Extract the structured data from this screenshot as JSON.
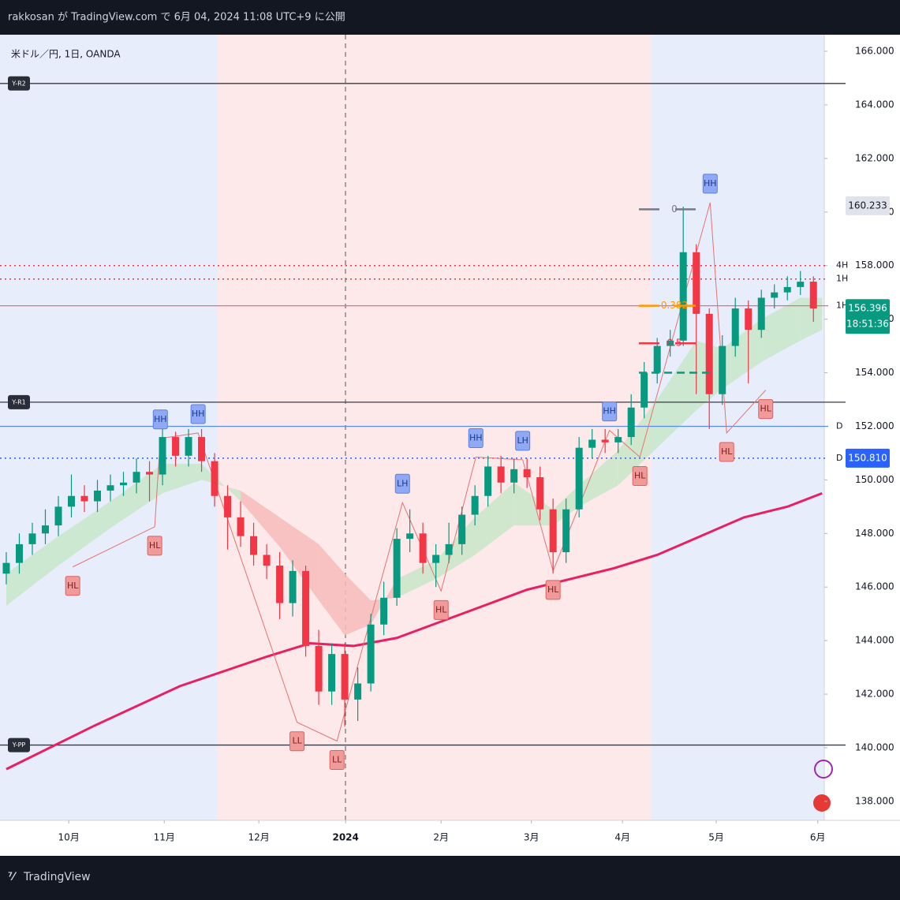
{
  "header": {
    "publisher": "rakkosan が TradingView.com で 6月 04, 2024 11:08 UTC+9 に公開"
  },
  "chart_data": {
    "type": "candlestick",
    "title": "米ドル／円, 1日, OANDA",
    "xlim": [
      -1.45,
      188.5
    ],
    "xticks": [
      {
        "value": 14.4,
        "label": "10月"
      },
      {
        "value": 36.4,
        "label": "11月"
      },
      {
        "value": 58.2,
        "label": "12月"
      },
      {
        "value": 78.2,
        "label": "2024"
      },
      {
        "value": 100.2,
        "label": "2月"
      },
      {
        "value": 121,
        "label": "3月"
      },
      {
        "value": 142,
        "label": "4月"
      },
      {
        "value": 163.6,
        "label": "5月"
      },
      {
        "value": 187,
        "label": "6月"
      }
    ],
    "ylim": [
      137.29,
      166.62
    ],
    "yticks": [
      {
        "value": 138,
        "label": "138.000"
      },
      {
        "value": 140,
        "label": "140.000"
      },
      {
        "value": 142,
        "label": "142.000"
      },
      {
        "value": 144,
        "label": "144.000"
      },
      {
        "value": 146,
        "label": "146.000"
      },
      {
        "value": 148,
        "label": "148.000"
      },
      {
        "value": 150,
        "label": "150.000"
      },
      {
        "value": 152,
        "label": "152.000"
      },
      {
        "value": 154,
        "label": "154.000"
      },
      {
        "value": 156,
        "label": "156.000"
      },
      {
        "value": 158,
        "label": "158.000"
      },
      {
        "value": 160,
        "label": "160.000"
      },
      {
        "value": 162,
        "label": "162.000"
      },
      {
        "value": 164,
        "label": "164.000"
      },
      {
        "value": 166,
        "label": "166.000"
      }
    ],
    "candles": {
      "up_color": "#089981",
      "down_color": "#f23645",
      "x": [
        0,
        3,
        6,
        9,
        12,
        15,
        18,
        21,
        24,
        27,
        30,
        33,
        36,
        39,
        42,
        45,
        48,
        51,
        54,
        57,
        60,
        63,
        66,
        69,
        72,
        75,
        78,
        81,
        84,
        87,
        90,
        93,
        96,
        99,
        102,
        105,
        108,
        111,
        114,
        117,
        120,
        123,
        126,
        129,
        132,
        135,
        138,
        141,
        144,
        147,
        150,
        153,
        156,
        159,
        162,
        165,
        168,
        171,
        174,
        177,
        180,
        183,
        186
      ],
      "ohlc": [
        [
          146.5,
          147.3,
          146.1,
          146.9
        ],
        [
          146.9,
          148.0,
          146.5,
          147.6
        ],
        [
          147.6,
          148.4,
          147.2,
          148.0
        ],
        [
          148.0,
          148.9,
          147.6,
          148.3
        ],
        [
          148.3,
          149.4,
          147.9,
          149.0
        ],
        [
          149.0,
          150.2,
          148.6,
          149.4
        ],
        [
          149.4,
          149.8,
          148.8,
          149.2
        ],
        [
          149.2,
          150.0,
          148.8,
          149.6
        ],
        [
          149.6,
          150.2,
          149.2,
          149.8
        ],
        [
          149.8,
          150.3,
          149.4,
          149.9
        ],
        [
          149.9,
          150.8,
          149.5,
          150.3
        ],
        [
          150.3,
          150.7,
          149.2,
          150.2
        ],
        [
          150.2,
          151.9,
          149.8,
          151.6
        ],
        [
          151.6,
          151.8,
          150.5,
          150.9
        ],
        [
          150.9,
          151.9,
          150.5,
          151.6
        ],
        [
          151.6,
          151.9,
          150.3,
          150.7
        ],
        [
          150.7,
          151.0,
          149.0,
          149.4
        ],
        [
          149.4,
          149.8,
          147.4,
          148.6
        ],
        [
          148.6,
          149.2,
          147.5,
          147.9
        ],
        [
          147.9,
          148.4,
          146.8,
          147.2
        ],
        [
          147.2,
          147.6,
          146.3,
          146.8
        ],
        [
          146.8,
          147.3,
          144.8,
          145.4
        ],
        [
          145.4,
          147.0,
          144.9,
          146.6
        ],
        [
          146.6,
          146.8,
          143.4,
          143.8
        ],
        [
          143.8,
          144.4,
          141.6,
          142.1
        ],
        [
          142.1,
          143.9,
          141.6,
          143.5
        ],
        [
          143.5,
          143.9,
          140.8,
          141.8
        ],
        [
          141.8,
          143.0,
          141.0,
          142.4
        ],
        [
          142.4,
          145.0,
          142.1,
          144.6
        ],
        [
          144.6,
          146.2,
          144.2,
          145.6
        ],
        [
          145.6,
          148.2,
          145.3,
          147.8
        ],
        [
          147.8,
          148.9,
          147.3,
          148.0
        ],
        [
          148.0,
          148.4,
          146.5,
          146.9
        ],
        [
          146.9,
          147.6,
          146.0,
          147.2
        ],
        [
          147.2,
          148.4,
          146.9,
          147.6
        ],
        [
          147.6,
          149.0,
          147.2,
          148.7
        ],
        [
          148.7,
          149.8,
          148.3,
          149.4
        ],
        [
          149.4,
          150.9,
          149.0,
          150.5
        ],
        [
          150.5,
          150.9,
          149.5,
          149.9
        ],
        [
          149.9,
          150.8,
          149.5,
          150.4
        ],
        [
          150.4,
          150.8,
          149.7,
          150.1
        ],
        [
          150.1,
          150.5,
          148.5,
          148.9
        ],
        [
          148.9,
          149.3,
          146.5,
          147.3
        ],
        [
          147.3,
          149.3,
          146.9,
          148.9
        ],
        [
          148.9,
          151.6,
          148.6,
          151.2
        ],
        [
          151.2,
          151.9,
          150.8,
          151.5
        ],
        [
          151.5,
          151.9,
          151.0,
          151.4
        ],
        [
          151.4,
          151.9,
          151.0,
          151.6
        ],
        [
          151.6,
          153.2,
          151.3,
          152.7
        ],
        [
          152.7,
          154.4,
          152.3,
          154.0
        ],
        [
          154.0,
          155.3,
          153.6,
          155.0
        ],
        [
          155.0,
          155.6,
          154.6,
          155.2
        ],
        [
          155.2,
          160.2,
          155.0,
          158.5
        ],
        [
          158.5,
          158.8,
          153.2,
          156.2
        ],
        [
          156.2,
          156.4,
          151.9,
          153.2
        ],
        [
          153.2,
          155.4,
          152.8,
          155.0
        ],
        [
          155.0,
          156.8,
          154.6,
          156.4
        ],
        [
          156.4,
          156.7,
          153.6,
          155.6
        ],
        [
          155.6,
          157.1,
          155.3,
          156.8
        ],
        [
          156.8,
          157.3,
          156.4,
          157.0
        ],
        [
          157.0,
          157.6,
          156.7,
          157.2
        ],
        [
          157.2,
          157.8,
          156.9,
          157.4
        ],
        [
          157.4,
          157.6,
          155.9,
          156.4
        ]
      ]
    },
    "ma": {
      "color": "#e91e63",
      "x": [
        0,
        20,
        40,
        60,
        70,
        80,
        90,
        100,
        110,
        120,
        130,
        140,
        150,
        160,
        170,
        180,
        188
      ],
      "values": [
        139.2,
        140.8,
        142.3,
        143.4,
        143.9,
        143.8,
        144.1,
        144.7,
        145.3,
        145.9,
        146.3,
        146.7,
        147.2,
        147.9,
        148.6,
        149.0,
        149.5
      ]
    },
    "ribbon": {
      "up_color": "#c8e6c9",
      "down_color": "#f8bbbb",
      "x": [
        0,
        12,
        24,
        36,
        45,
        54,
        63,
        72,
        78,
        84,
        90,
        99,
        108,
        117,
        126,
        132,
        141,
        150,
        159,
        165,
        174,
        183,
        188
      ],
      "fast": [
        146.5,
        147.9,
        149.2,
        150.6,
        150.6,
        149.2,
        147.5,
        145.5,
        144.2,
        144.6,
        146.3,
        147.0,
        148.6,
        149.9,
        148.9,
        149.8,
        151.1,
        153.0,
        155.2,
        154.9,
        156.0,
        156.8,
        156.8
      ],
      "slow": [
        145.3,
        146.8,
        148.2,
        149.5,
        150.0,
        149.6,
        148.6,
        147.6,
        146.5,
        145.5,
        145.6,
        146.3,
        147.2,
        148.3,
        148.3,
        149.0,
        149.8,
        151.2,
        152.6,
        153.4,
        154.4,
        155.2,
        155.6
      ]
    },
    "levels": [
      {
        "label": "Y-R2",
        "value": 164.8,
        "color": "#363a45",
        "style": "solid",
        "side": "left"
      },
      {
        "label": "Y-R1",
        "value": 152.9,
        "color": "#363a45",
        "style": "solid",
        "side": "left"
      },
      {
        "label": "Y-PP",
        "value": 140.1,
        "color": "#363a45",
        "style": "solid",
        "side": "left"
      },
      {
        "label": "D",
        "value": 152.0,
        "color": "#5b8def",
        "style": "solid",
        "side": "right"
      },
      {
        "label": "D",
        "value": 150.81,
        "color": "#2962ff",
        "style": "dotted",
        "side": "right"
      },
      {
        "label": "4H",
        "value": 158.0,
        "color": "#f23645",
        "style": "dotted",
        "side": "right"
      },
      {
        "label": "1H",
        "value": 157.5,
        "color": "#f23645",
        "style": "dotted",
        "side": "right"
      },
      {
        "label": "1H",
        "value": 156.5,
        "color": "#f06a78",
        "style": "solid",
        "side": "right"
      }
    ],
    "fib": [
      {
        "label": "0",
        "value": 160.1,
        "color": "#787b86"
      },
      {
        "label": "0.382",
        "value": 156.5,
        "color": "#ff9800"
      },
      {
        "label": "0.5",
        "value": 155.1,
        "color": "#f23645"
      },
      {
        "value": 154.0,
        "color": "#089981"
      }
    ],
    "pivots": [
      {
        "label": "HL",
        "x": 15.3,
        "value": 146.75
      },
      {
        "label": "HL",
        "x": 34.2,
        "value": 148.25
      },
      {
        "label": "HH",
        "x": 35.5,
        "value": 151.55
      },
      {
        "label": "HH",
        "x": 44.2,
        "value": 151.75
      },
      {
        "label": "LL",
        "x": 67,
        "value": 140.95
      },
      {
        "label": "LL",
        "x": 76.2,
        "value": 140.25
      },
      {
        "label": "LH",
        "x": 91.3,
        "value": 149.15
      },
      {
        "label": "HL",
        "x": 100.2,
        "value": 145.85
      },
      {
        "label": "HH",
        "x": 108.2,
        "value": 150.85
      },
      {
        "label": "LH",
        "x": 119,
        "value": 150.75
      },
      {
        "label": "HL",
        "x": 126,
        "value": 146.6
      },
      {
        "label": "HH",
        "x": 139,
        "value": 151.85
      },
      {
        "label": "HL",
        "x": 146,
        "value": 150.85
      },
      {
        "label": "HH",
        "x": 162.2,
        "value": 160.35
      },
      {
        "label": "HL",
        "x": 166,
        "value": 151.75
      },
      {
        "label": "HL",
        "x": 175,
        "value": 153.35
      }
    ],
    "price_tags": [
      {
        "value": 160.233,
        "color": "#e0e3eb",
        "text_color": "#131722"
      },
      {
        "value": 150.81,
        "label": "150.810",
        "color": "#2962ff",
        "text_color": "#ffffff"
      },
      {
        "value": 156.396,
        "extra": "18:51:36",
        "color": "#089981",
        "text_color": "#ffffff"
      }
    ]
  },
  "footer": {
    "logo": "TradingView"
  }
}
